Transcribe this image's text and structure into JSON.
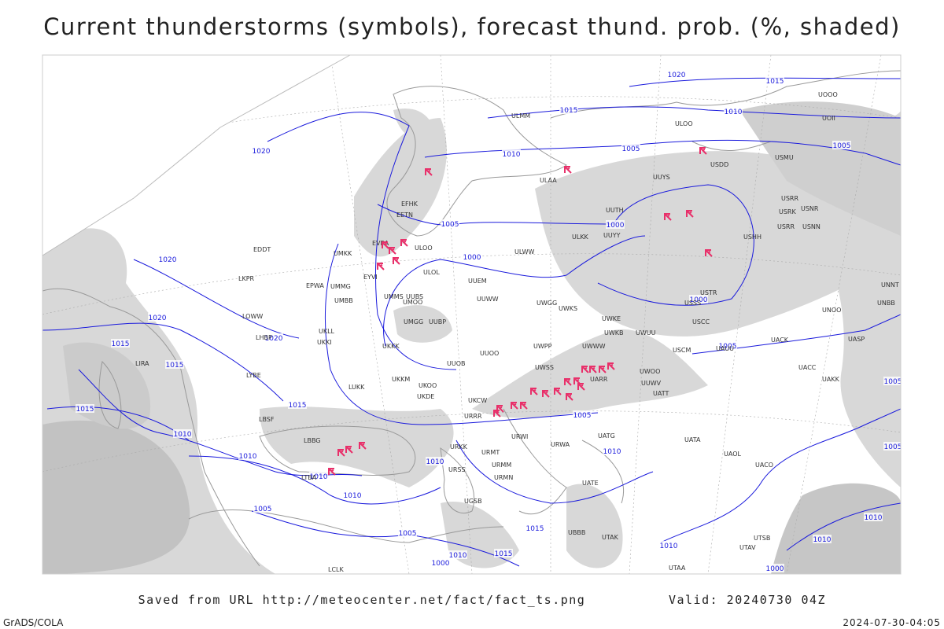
{
  "title": "Current thunderstorms (symbols), forecast thund. prob. (%, shaded)",
  "footer": {
    "source": "Saved from URL http://meteocenter.net/fact/fact_ts.png",
    "valid": "Valid: 20240730 04Z",
    "software": "GrADS/COLA",
    "timestamp": "2024-07-30-04:05"
  },
  "isobar_labels": [
    "1020",
    "1015",
    "1015",
    "1010",
    "1005",
    "1005",
    "1010",
    "1020",
    "1005",
    "1000",
    "1000",
    "1020",
    "1000",
    "1020",
    "1020",
    "1015",
    "1015",
    "1005",
    "1015",
    "1015",
    "1005",
    "1010",
    "1010",
    "1010",
    "1010",
    "1010",
    "1010",
    "1005",
    "1005",
    "1015",
    "1015",
    "1010",
    "1000",
    "1010",
    "1005",
    "1005",
    "1010",
    "1010",
    "1000"
  ],
  "stations": [
    "ULMM",
    "ULOO",
    "UUYS",
    "ULAA",
    "USDD",
    "USMU",
    "USRR",
    "USRK",
    "USNR",
    "USRR",
    "USNN",
    "USHH",
    "UUYY",
    "ULKK",
    "ULWW",
    "ULOO",
    "ULOL",
    "UUEM",
    "UUWW",
    "UUBS",
    "UOOO",
    "UOII",
    "UUTH",
    "USTR",
    "USSS",
    "USCC",
    "USCM",
    "UAUU",
    "UACK",
    "UACC",
    "UAKK",
    "UASP",
    "UNBB",
    "UNNT",
    "UNOO",
    "UATT",
    "UATG",
    "UATA",
    "UAOL",
    "UACO",
    "UATE",
    "UTAK",
    "UTAV",
    "UTSB",
    "UTAA",
    "UUOO",
    "UUOB",
    "UWOO",
    "UUWV",
    "UKKK",
    "UKKM",
    "UKOO",
    "UKDE",
    "URRR",
    "UKCW",
    "URWA",
    "URWI",
    "URKK",
    "URMT",
    "URMM",
    "URMN",
    "URSS",
    "UGSB",
    "UBBB",
    "UMKK",
    "UMMG",
    "UMBB",
    "UMMS",
    "UMOO",
    "UKLL",
    "UKKI",
    "EPWA",
    "LKPR",
    "EDDT",
    "LOWW",
    "LHBP",
    "LYBE",
    "LBSF",
    "EYVI",
    "EVRA",
    "EETN",
    "EFHK",
    "LUKK",
    "LBBG",
    "LTBA",
    "LIRA",
    "LCLK",
    "UWKS",
    "UWKE",
    "UWKB",
    "UWUU",
    "UWWW",
    "UWPP",
    "UWSS",
    "UARR",
    "UWGG",
    "UUBP",
    "UMGG"
  ]
}
